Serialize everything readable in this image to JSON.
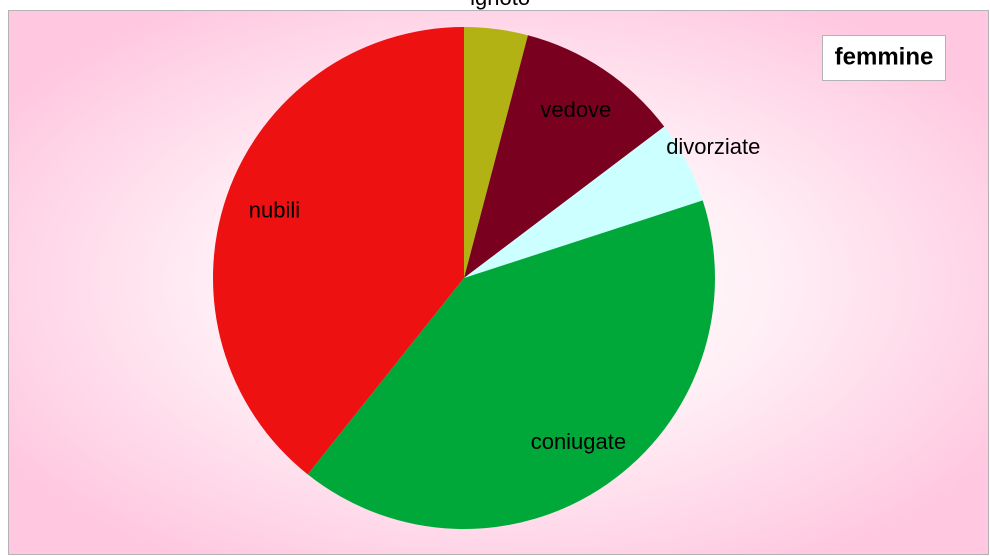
{
  "chart_data": {
    "type": "pie",
    "title": "femmine",
    "categories": [
      "ignoto",
      "vedove",
      "divorziate",
      "coniugate",
      "nubili"
    ],
    "values": [
      4.1,
      10.6,
      5.3,
      40.7,
      39.3
    ],
    "colors": [
      "#b2b214",
      "#7a0020",
      "#ccffff",
      "#00a83a",
      "#ee1111"
    ]
  }
}
